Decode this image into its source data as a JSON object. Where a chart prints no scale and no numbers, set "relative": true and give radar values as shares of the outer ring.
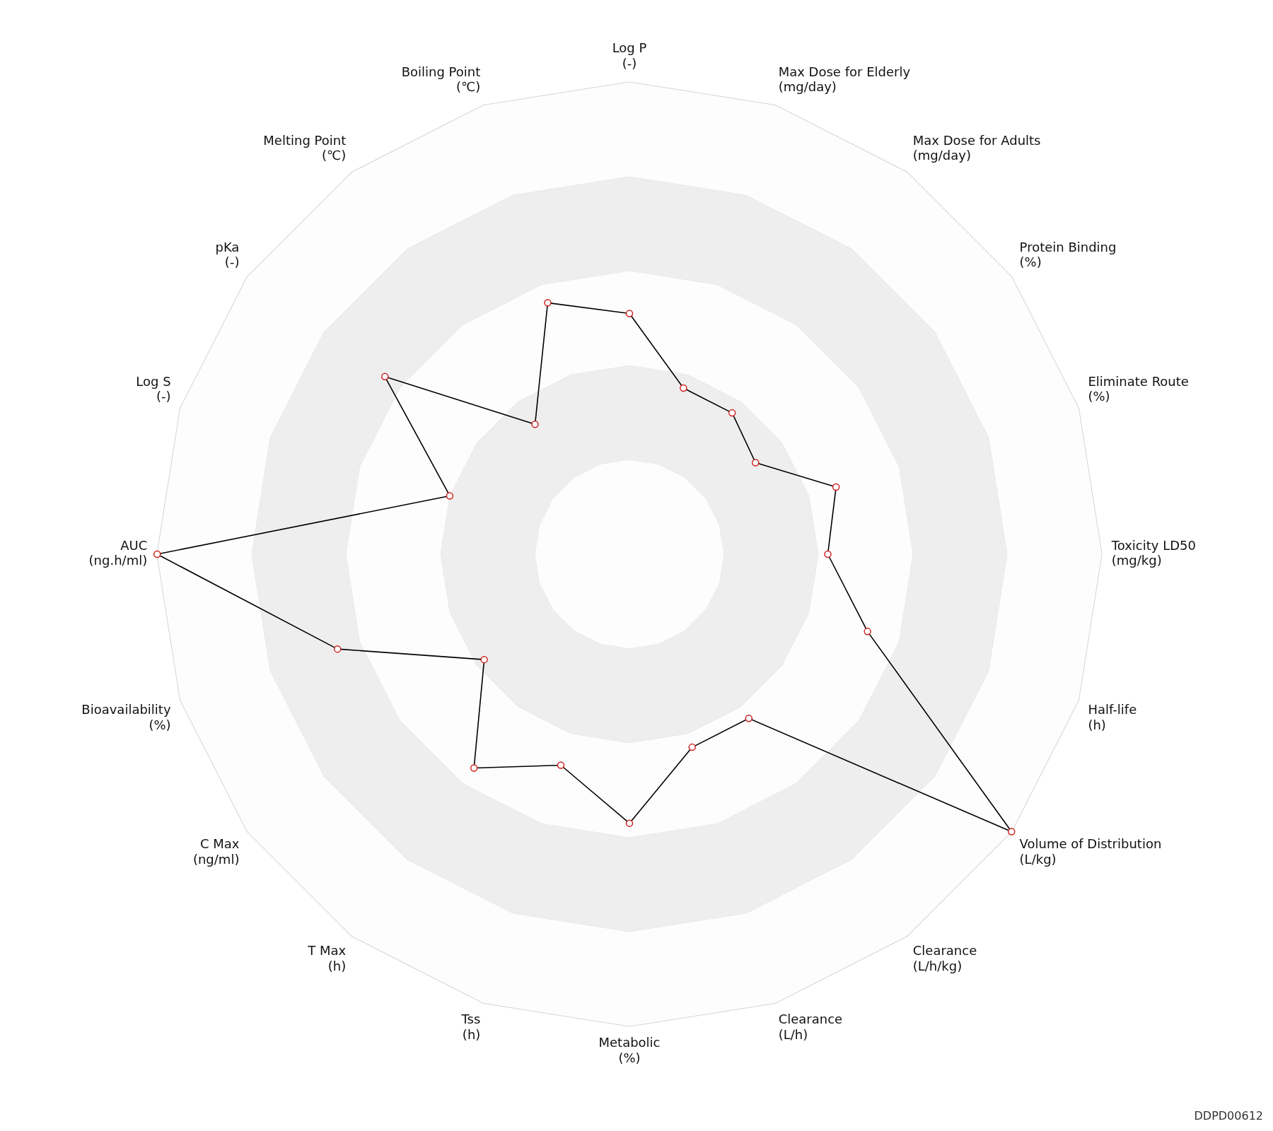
{
  "chart_data": {
    "type": "radar",
    "relative": true,
    "categories": [
      "Log P\n(-)",
      "Max Dose for Elderly\n(mg/day)",
      "Max Dose for Adults\n(mg/day)",
      "Protein Binding\n(%)",
      "Eliminate Route\n(%)",
      "Toxicity LD50\n(mg/kg)",
      "Half-life\n(h)",
      "Volume of Distribution\n(L/kg)",
      "Clearance\n(L/h/kg)",
      "Clearance\n(L/h)",
      "Metabolic\n(%)",
      "Tss\n(h)",
      "T Max\n(h)",
      "C Max\n(ng/ml)",
      "Bioavailability\n(%)",
      "AUC\n(ng.h/ml)",
      "Log S\n(-)",
      "pKa\n(-)",
      "Melting Point\n(℃)",
      "Boiling Point\n(℃)"
    ],
    "series": [
      {
        "color": "#000000",
        "values": [
          0.51,
          0.37,
          0.37,
          0.33,
          0.46,
          0.42,
          0.53,
          1.0,
          0.43,
          0.43,
          0.57,
          0.47,
          0.56,
          0.38,
          0.65,
          1.0,
          0.4,
          0.64,
          0.34,
          0.56
        ]
      }
    ],
    "marker": "circle",
    "legend": false,
    "annotations": [
      "DDPD00612"
    ]
  }
}
